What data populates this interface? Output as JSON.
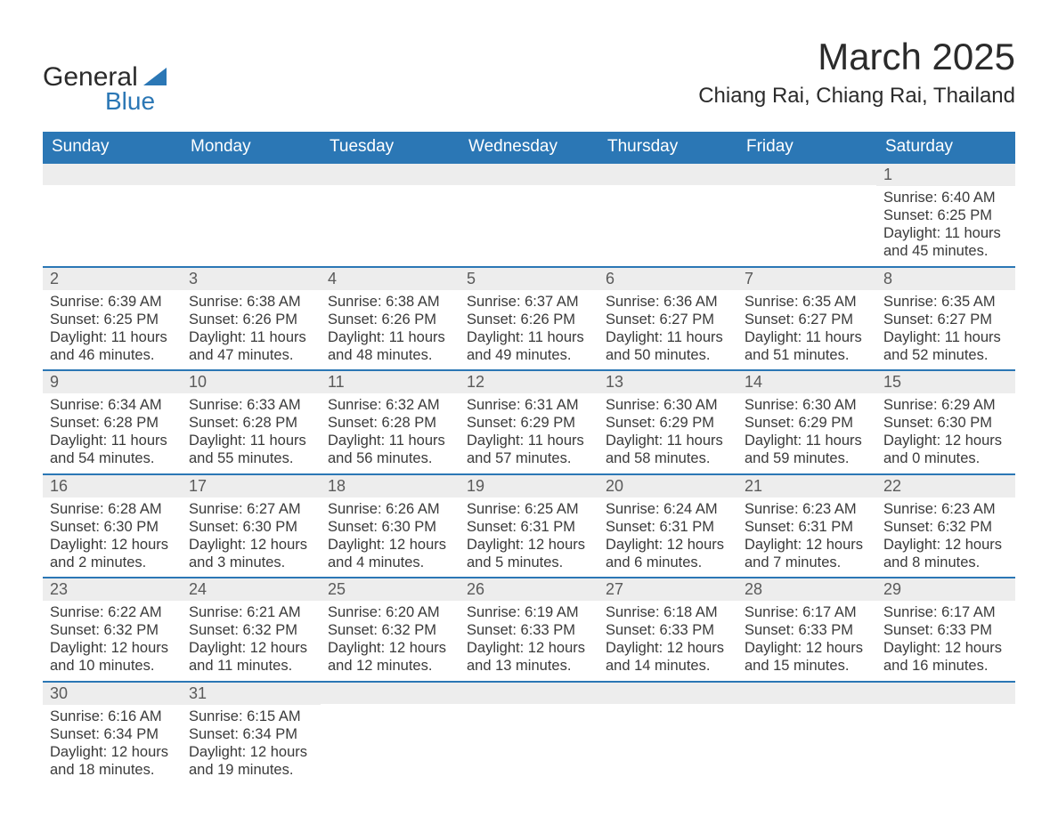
{
  "logo": {
    "line1": "General",
    "line2": "Blue"
  },
  "title": "March 2025",
  "location": "Chiang Rai, Chiang Rai, Thailand",
  "colors": {
    "header_bg": "#2b77b5",
    "header_text": "#ffffff",
    "daynum_bg": "#ededed",
    "row_border": "#2b77b5",
    "body_text": "#3a3a3a",
    "logo_text": "#2b2b2b",
    "logo_blue": "#2b77b5"
  },
  "weekdays": [
    "Sunday",
    "Monday",
    "Tuesday",
    "Wednesday",
    "Thursday",
    "Friday",
    "Saturday"
  ],
  "labels": {
    "sunrise": "Sunrise:",
    "sunset": "Sunset:",
    "daylight": "Daylight:"
  },
  "days": [
    {
      "n": 1,
      "sunrise": "6:40 AM",
      "sunset": "6:25 PM",
      "daylight": "11 hours and 45 minutes."
    },
    {
      "n": 2,
      "sunrise": "6:39 AM",
      "sunset": "6:25 PM",
      "daylight": "11 hours and 46 minutes."
    },
    {
      "n": 3,
      "sunrise": "6:38 AM",
      "sunset": "6:26 PM",
      "daylight": "11 hours and 47 minutes."
    },
    {
      "n": 4,
      "sunrise": "6:38 AM",
      "sunset": "6:26 PM",
      "daylight": "11 hours and 48 minutes."
    },
    {
      "n": 5,
      "sunrise": "6:37 AM",
      "sunset": "6:26 PM",
      "daylight": "11 hours and 49 minutes."
    },
    {
      "n": 6,
      "sunrise": "6:36 AM",
      "sunset": "6:27 PM",
      "daylight": "11 hours and 50 minutes."
    },
    {
      "n": 7,
      "sunrise": "6:35 AM",
      "sunset": "6:27 PM",
      "daylight": "11 hours and 51 minutes."
    },
    {
      "n": 8,
      "sunrise": "6:35 AM",
      "sunset": "6:27 PM",
      "daylight": "11 hours and 52 minutes."
    },
    {
      "n": 9,
      "sunrise": "6:34 AM",
      "sunset": "6:28 PM",
      "daylight": "11 hours and 54 minutes."
    },
    {
      "n": 10,
      "sunrise": "6:33 AM",
      "sunset": "6:28 PM",
      "daylight": "11 hours and 55 minutes."
    },
    {
      "n": 11,
      "sunrise": "6:32 AM",
      "sunset": "6:28 PM",
      "daylight": "11 hours and 56 minutes."
    },
    {
      "n": 12,
      "sunrise": "6:31 AM",
      "sunset": "6:29 PM",
      "daylight": "11 hours and 57 minutes."
    },
    {
      "n": 13,
      "sunrise": "6:30 AM",
      "sunset": "6:29 PM",
      "daylight": "11 hours and 58 minutes."
    },
    {
      "n": 14,
      "sunrise": "6:30 AM",
      "sunset": "6:29 PM",
      "daylight": "11 hours and 59 minutes."
    },
    {
      "n": 15,
      "sunrise": "6:29 AM",
      "sunset": "6:30 PM",
      "daylight": "12 hours and 0 minutes."
    },
    {
      "n": 16,
      "sunrise": "6:28 AM",
      "sunset": "6:30 PM",
      "daylight": "12 hours and 2 minutes."
    },
    {
      "n": 17,
      "sunrise": "6:27 AM",
      "sunset": "6:30 PM",
      "daylight": "12 hours and 3 minutes."
    },
    {
      "n": 18,
      "sunrise": "6:26 AM",
      "sunset": "6:30 PM",
      "daylight": "12 hours and 4 minutes."
    },
    {
      "n": 19,
      "sunrise": "6:25 AM",
      "sunset": "6:31 PM",
      "daylight": "12 hours and 5 minutes."
    },
    {
      "n": 20,
      "sunrise": "6:24 AM",
      "sunset": "6:31 PM",
      "daylight": "12 hours and 6 minutes."
    },
    {
      "n": 21,
      "sunrise": "6:23 AM",
      "sunset": "6:31 PM",
      "daylight": "12 hours and 7 minutes."
    },
    {
      "n": 22,
      "sunrise": "6:23 AM",
      "sunset": "6:32 PM",
      "daylight": "12 hours and 8 minutes."
    },
    {
      "n": 23,
      "sunrise": "6:22 AM",
      "sunset": "6:32 PM",
      "daylight": "12 hours and 10 minutes."
    },
    {
      "n": 24,
      "sunrise": "6:21 AM",
      "sunset": "6:32 PM",
      "daylight": "12 hours and 11 minutes."
    },
    {
      "n": 25,
      "sunrise": "6:20 AM",
      "sunset": "6:32 PM",
      "daylight": "12 hours and 12 minutes."
    },
    {
      "n": 26,
      "sunrise": "6:19 AM",
      "sunset": "6:33 PM",
      "daylight": "12 hours and 13 minutes."
    },
    {
      "n": 27,
      "sunrise": "6:18 AM",
      "sunset": "6:33 PM",
      "daylight": "12 hours and 14 minutes."
    },
    {
      "n": 28,
      "sunrise": "6:17 AM",
      "sunset": "6:33 PM",
      "daylight": "12 hours and 15 minutes."
    },
    {
      "n": 29,
      "sunrise": "6:17 AM",
      "sunset": "6:33 PM",
      "daylight": "12 hours and 16 minutes."
    },
    {
      "n": 30,
      "sunrise": "6:16 AM",
      "sunset": "6:34 PM",
      "daylight": "12 hours and 18 minutes."
    },
    {
      "n": 31,
      "sunrise": "6:15 AM",
      "sunset": "6:34 PM",
      "daylight": "12 hours and 19 minutes."
    }
  ],
  "calendar": {
    "first_weekday_index": 6,
    "rows": 6,
    "cols": 7
  }
}
